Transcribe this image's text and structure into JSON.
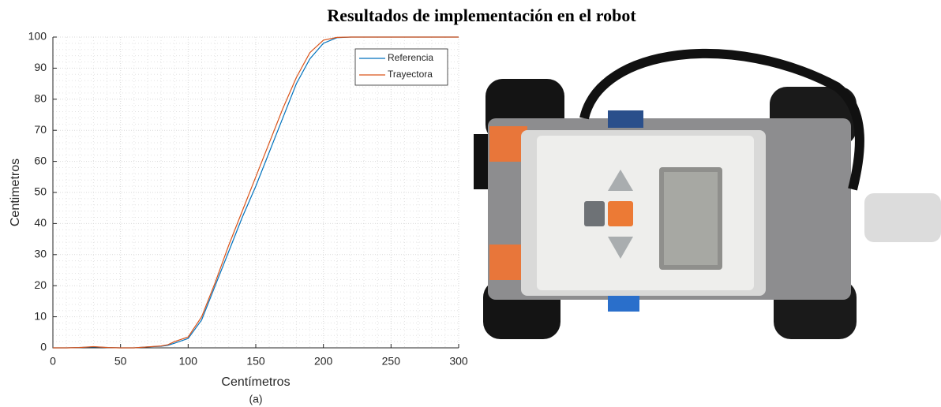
{
  "chart_data": {
    "type": "line",
    "title": "Resultados de implementación en el robot",
    "x_label": "Centímetros",
    "y_label": "Centimetros",
    "caption": "(a)",
    "x": [
      0,
      10,
      20,
      30,
      40,
      50,
      60,
      70,
      80,
      85,
      90,
      100,
      110,
      120,
      130,
      140,
      150,
      160,
      170,
      180,
      190,
      200,
      210,
      220,
      230,
      250,
      300
    ],
    "series": [
      {
        "name": "Referencia",
        "color": "#0072bd",
        "values": [
          0,
          0,
          0.1,
          0.3,
          0.1,
          0,
          0,
          0.3,
          0.5,
          0.8,
          1.5,
          3,
          9,
          20,
          31,
          42,
          52,
          63,
          74,
          85,
          93,
          98,
          99.8,
          100,
          100,
          100,
          100
        ]
      },
      {
        "name": "Trayectora",
        "color": "#d95319",
        "values": [
          0,
          0,
          0.1,
          0.4,
          0.1,
          0,
          0,
          0.3,
          0.6,
          1,
          2,
          3.5,
          10,
          21,
          33,
          44,
          55,
          66,
          77,
          87,
          95,
          99,
          99.9,
          100,
          100,
          100,
          100
        ]
      }
    ],
    "xlim": [
      0,
      300
    ],
    "xticks": [
      0,
      50,
      100,
      150,
      200,
      250,
      300
    ],
    "ylim": [
      0,
      100
    ],
    "yticks": [
      0,
      10,
      20,
      30,
      40,
      50,
      60,
      70,
      80,
      90,
      100
    ],
    "grid": true,
    "minor_grid": true,
    "legend": "upper right"
  }
}
